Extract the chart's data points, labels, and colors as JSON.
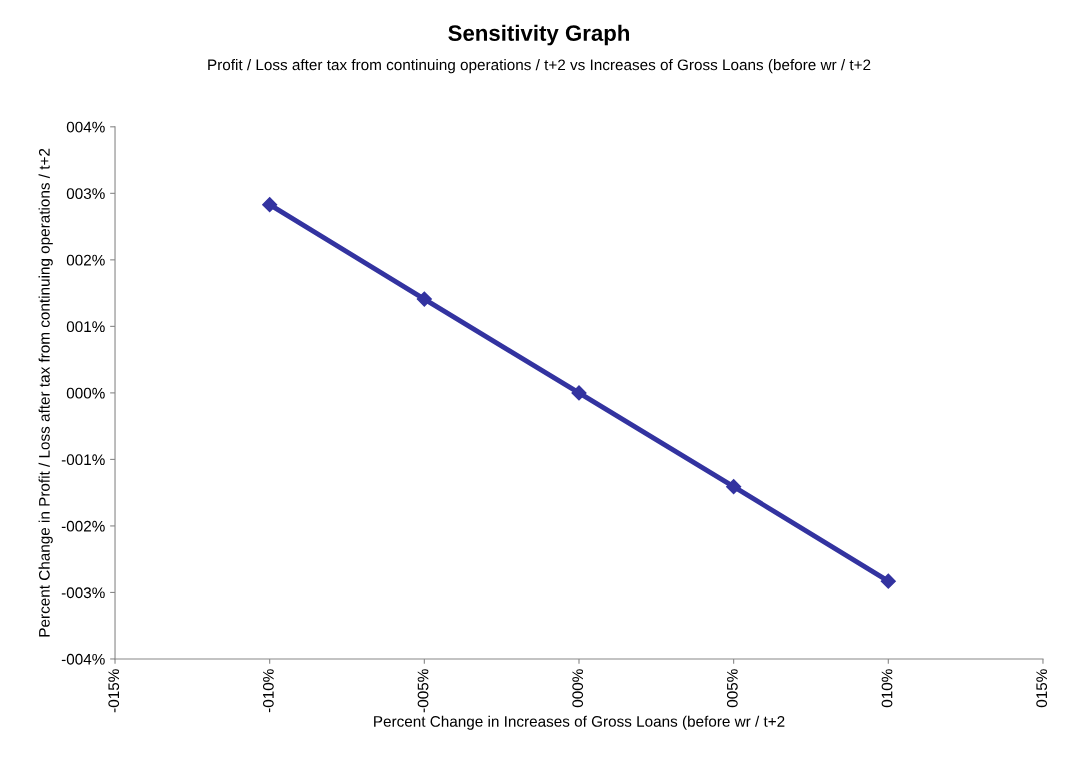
{
  "chart_data": {
    "type": "line",
    "title": "Sensitivity Graph",
    "subtitle": "Profit / Loss after tax from continuing operations / t+2 vs Increases of Gross Loans (before wr / t+2",
    "xlabel": "Percent Change in Increases of Gross Loans (before wr / t+2",
    "ylabel": "Percent Change in Profit / Loss after tax from continuing operations / t+2",
    "x": [
      -10,
      -5,
      0,
      5,
      10
    ],
    "series": [
      {
        "color": "#3333a0",
        "values": [
          2.83,
          1.41,
          0,
          -1.41,
          -2.83
        ]
      }
    ],
    "xlim": [
      -15,
      15
    ],
    "xticks": [
      {
        "value": -15,
        "label": "-015%"
      },
      {
        "value": -10,
        "label": "-010%"
      },
      {
        "value": -5,
        "label": "-005%"
      },
      {
        "value": 0,
        "label": "000%"
      },
      {
        "value": 5,
        "label": "005%"
      },
      {
        "value": 10,
        "label": "010%"
      },
      {
        "value": 15,
        "label": "015%"
      }
    ],
    "ylim": [
      -4,
      4
    ],
    "yticks": [
      {
        "value": -4,
        "label": "-004%"
      },
      {
        "value": -3,
        "label": "-003%"
      },
      {
        "value": -2,
        "label": "-002%"
      },
      {
        "value": -1,
        "label": "-001%"
      },
      {
        "value": 0,
        "label": "000%"
      },
      {
        "value": 1,
        "label": "001%"
      },
      {
        "value": 2,
        "label": "002%"
      },
      {
        "value": 3,
        "label": "003%"
      },
      {
        "value": 4,
        "label": "004%"
      }
    ],
    "grid": false,
    "legend": false,
    "marker": "diamond",
    "line_style": "solid"
  }
}
